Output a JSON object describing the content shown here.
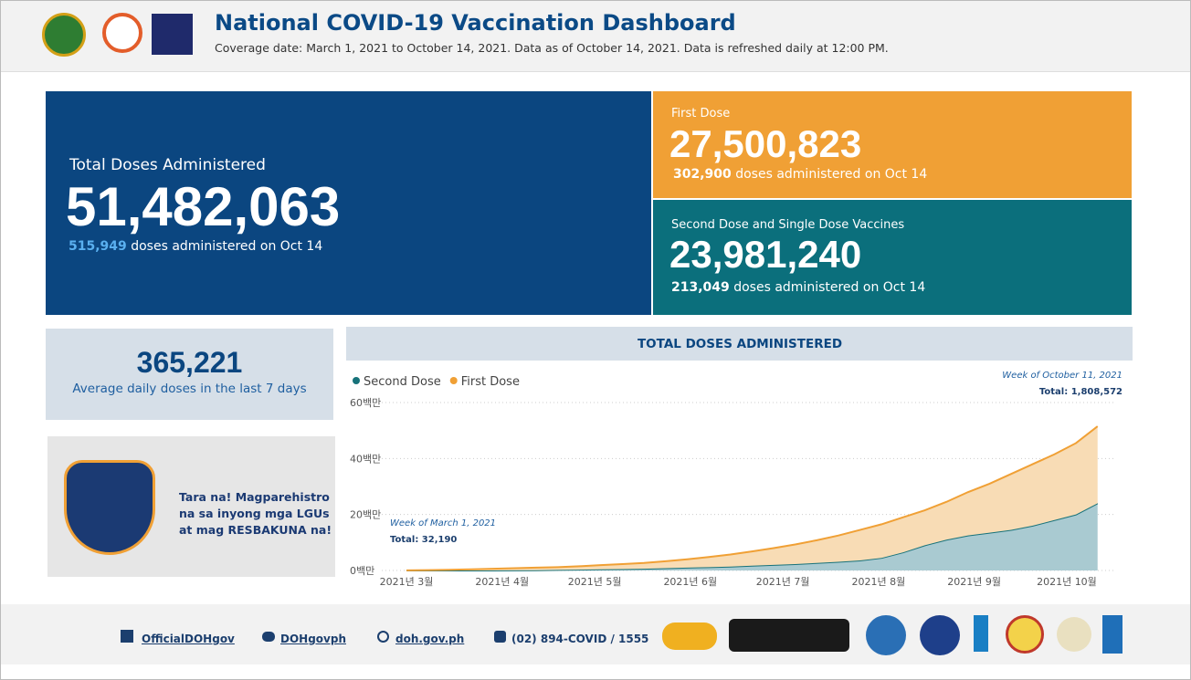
{
  "header": {
    "title": "National COVID-19 Vaccination Dashboard",
    "subtitle": "Coverage date: March 1, 2021 to October 14, 2021. Data as of October 14, 2021. Data is refreshed daily at 12:00 PM."
  },
  "kpis": {
    "total": {
      "label": "Total Doses Administered",
      "value": "51,482,063",
      "daily": "515,949",
      "daily_text": "doses administered on Oct 14"
    },
    "first": {
      "label": "First Dose",
      "value": "27,500,823",
      "daily": "302,900",
      "daily_text": "doses administered on Oct 14"
    },
    "second": {
      "label": "Second Dose and Single Dose Vaccines",
      "value": "23,981,240",
      "daily": "213,049",
      "daily_text": "doses administered on Oct 14"
    },
    "average": {
      "value": "365,221",
      "label": "Average daily doses in the last 7 days"
    }
  },
  "promo": {
    "lines": [
      "Tara na! Magparehistro",
      "na sa inyong mga LGUs",
      "at mag RESBAKUNA na!"
    ]
  },
  "chart_data": {
    "type": "stacked_area",
    "title": "TOTAL DOSES ADMINISTERED",
    "x": [
      "2021-03-01",
      "2021-03-08",
      "2021-03-15",
      "2021-03-22",
      "2021-03-29",
      "2021-04-05",
      "2021-04-12",
      "2021-04-19",
      "2021-04-26",
      "2021-05-03",
      "2021-05-10",
      "2021-05-17",
      "2021-05-24",
      "2021-05-31",
      "2021-06-07",
      "2021-06-14",
      "2021-06-21",
      "2021-06-28",
      "2021-07-05",
      "2021-07-12",
      "2021-07-19",
      "2021-07-26",
      "2021-08-02",
      "2021-08-09",
      "2021-08-16",
      "2021-08-23",
      "2021-08-30",
      "2021-09-06",
      "2021-09-13",
      "2021-09-20",
      "2021-09-27",
      "2021-10-04",
      "2021-10-11"
    ],
    "series": [
      {
        "name": "Second Dose",
        "color": "#17727a",
        "fill": "#a9cad1",
        "values": [
          0,
          0,
          0.005,
          0.01,
          0.02,
          0.05,
          0.1,
          0.2,
          0.3,
          0.4,
          0.5,
          0.6,
          0.8,
          1.0,
          1.2,
          1.4,
          1.7,
          2.0,
          2.3,
          2.7,
          3.1,
          3.6,
          4.5,
          6.5,
          9.0,
          11.0,
          12.5,
          13.5,
          14.5,
          16.0,
          18.0,
          20.0,
          24.0
        ]
      },
      {
        "name": "First Dose",
        "color": "#f0a035",
        "fill": "#f8dcb5",
        "values": [
          0.03,
          0.12,
          0.245,
          0.39,
          0.58,
          0.75,
          0.9,
          1.0,
          1.2,
          1.5,
          1.8,
          2.1,
          2.5,
          3.0,
          3.6,
          4.3,
          5.1,
          6.0,
          7.0,
          8.1,
          9.4,
          10.9,
          12.0,
          12.5,
          12.5,
          13.5,
          15.5,
          17.5,
          20.0,
          22.0,
          23.5,
          25.5,
          27.5
        ]
      }
    ],
    "xlim": [
      "2021-02-21",
      "2021-10-17"
    ],
    "xticks": [
      {
        "value": "2021-03-01",
        "label": "2021년 3월"
      },
      {
        "value": "2021-04-01",
        "label": "2021년 4월"
      },
      {
        "value": "2021-05-01",
        "label": "2021년 5월"
      },
      {
        "value": "2021-06-01",
        "label": "2021년 6월"
      },
      {
        "value": "2021-07-01",
        "label": "2021년 7월"
      },
      {
        "value": "2021-08-01",
        "label": "2021년 8월"
      },
      {
        "value": "2021-09-01",
        "label": "2021년 9월"
      },
      {
        "value": "2021-10-01",
        "label": "2021년 10월"
      }
    ],
    "ylim": [
      0,
      60
    ],
    "yticks": [
      {
        "value": 0,
        "label": "0백만"
      },
      {
        "value": 20,
        "label": "20백만"
      },
      {
        "value": 40,
        "label": "40백만"
      },
      {
        "value": 60,
        "label": "60백만"
      }
    ],
    "grid": true,
    "annotations": [
      {
        "title": "Week of March 1, 2021",
        "text": "Total: 32,190"
      },
      {
        "title": "Week of October 11, 2021",
        "text": "Total: 1,808,572"
      }
    ]
  },
  "footer": {
    "links": [
      "OfficialDOHgov",
      "DOHgovph",
      "doh.gov.ph",
      "(02) 894-COVID / 1555"
    ]
  }
}
